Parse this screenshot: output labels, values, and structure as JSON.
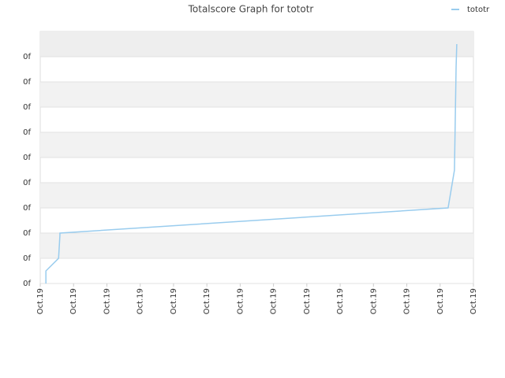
{
  "chart_data": {
    "type": "line",
    "title": "Totalscore Graph for tototr",
    "x": [
      0.17,
      0.17,
      0.55,
      0.59,
      0.59,
      12.24,
      12.43,
      12.48,
      12.5
    ],
    "series": [
      {
        "name": "tototr",
        "color": "#99ccee",
        "values": [
          0,
          0.5,
          1.0,
          1.9,
          2.0,
          3.0,
          4.5,
          8.6,
          9.5
        ]
      }
    ],
    "xlim": [
      0,
      13
    ],
    "xticks": [
      {
        "value": 0,
        "label": "Oct.19"
      },
      {
        "value": 1,
        "label": "Oct.19"
      },
      {
        "value": 2,
        "label": "Oct.19"
      },
      {
        "value": 3,
        "label": "Oct.19"
      },
      {
        "value": 4,
        "label": "Oct.19"
      },
      {
        "value": 5,
        "label": "Oct.19"
      },
      {
        "value": 6,
        "label": "Oct.19"
      },
      {
        "value": 7,
        "label": "Oct.19"
      },
      {
        "value": 8,
        "label": "Oct.19"
      },
      {
        "value": 9,
        "label": "Oct.19"
      },
      {
        "value": 10,
        "label": "Oct.19"
      },
      {
        "value": 11,
        "label": "Oct.19"
      },
      {
        "value": 12,
        "label": "Oct.19"
      },
      {
        "value": 13,
        "label": "Oct.19"
      }
    ],
    "ylim": [
      0,
      10
    ],
    "yticks": [
      {
        "value": 0,
        "label": "0f"
      },
      {
        "value": 1,
        "label": "0f"
      },
      {
        "value": 2,
        "label": "0f"
      },
      {
        "value": 3,
        "label": "0f"
      },
      {
        "value": 4,
        "label": "0f"
      },
      {
        "value": 5,
        "label": "0f"
      },
      {
        "value": 6,
        "label": "0f"
      },
      {
        "value": 7,
        "label": "0f"
      },
      {
        "value": 8,
        "label": "0f"
      },
      {
        "value": 9,
        "label": "0f"
      }
    ],
    "grid": true,
    "legend": "top-right"
  }
}
